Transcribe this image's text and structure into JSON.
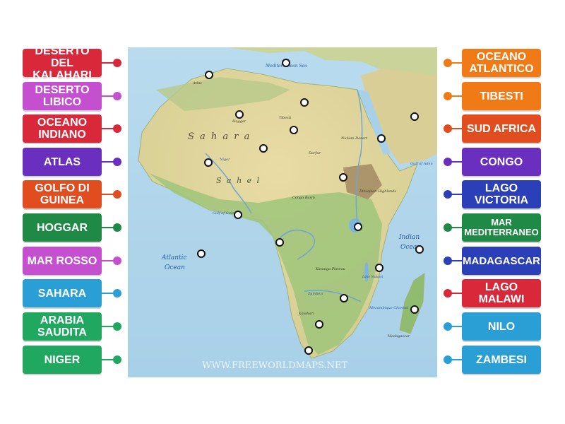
{
  "left_labels": [
    {
      "text": "DESERTO DEL KALAHARI",
      "color": "#d8283a"
    },
    {
      "text": "DESERTO LIBICO",
      "color": "#c44fcf"
    },
    {
      "text": "OCEANO INDIANO",
      "color": "#d8283a"
    },
    {
      "text": "ATLAS",
      "color": "#6a2fbf"
    },
    {
      "text": "GOLFO DI GUINEA",
      "color": "#e24d1f"
    },
    {
      "text": "HOGGAR",
      "color": "#1f8a46"
    },
    {
      "text": "MAR ROSSO",
      "color": "#c44fcf"
    },
    {
      "text": "SAHARA",
      "color": "#2a9fd6"
    },
    {
      "text": "ARABIA SAUDITA",
      "color": "#20a860"
    },
    {
      "text": "NIGER",
      "color": "#20a860"
    }
  ],
  "right_labels": [
    {
      "text": "OCEANO ATLANTICO",
      "color": "#f07a16"
    },
    {
      "text": "TIBESTI",
      "color": "#f07a16"
    },
    {
      "text": "SUD AFRICA",
      "color": "#e24d1f"
    },
    {
      "text": "CONGO",
      "color": "#6a2fbf"
    },
    {
      "text": "LAGO VICTORIA",
      "color": "#2a3fb8"
    },
    {
      "text": "MAR MEDITERRANEO",
      "color": "#1f8a46"
    },
    {
      "text": "MADAGASCAR",
      "color": "#2a3fb8"
    },
    {
      "text": "LAGO MALAWI",
      "color": "#d8283a"
    },
    {
      "text": "NILO",
      "color": "#2a9fd6"
    },
    {
      "text": "ZAMBESI",
      "color": "#2a9fd6"
    }
  ],
  "map_text": {
    "watermark": "WWW.FREEWORLDMAPS.NET",
    "sahara": "S a h a r a",
    "sahel": "S a h e l",
    "atlantic": "Atlantic",
    "atlantic2": "Ocean",
    "indian": "Indian",
    "indian2": "Ocean",
    "mediterranean": "Mediterranean Sea",
    "gulf_guinea": "Gulf of Guinea",
    "gulf_aden": "Gulf of Aden",
    "hoggar": "Hoggar",
    "tibesti": "Tibesti",
    "darfur": "Darfur",
    "nubian": "Nubian Desert",
    "ethiopian": "Ethiopian Highlands",
    "congo_basin": "Congo Basin",
    "kalahari": "Kalahari",
    "katanga": "Katanga Plateau",
    "mozambique": "Mozambique Channel",
    "madagascar": "Madagascar",
    "atlas": "Atlas",
    "niger": "Niger",
    "lake_malawi": "Lake Malawi",
    "zambezi": "Zambezi"
  }
}
